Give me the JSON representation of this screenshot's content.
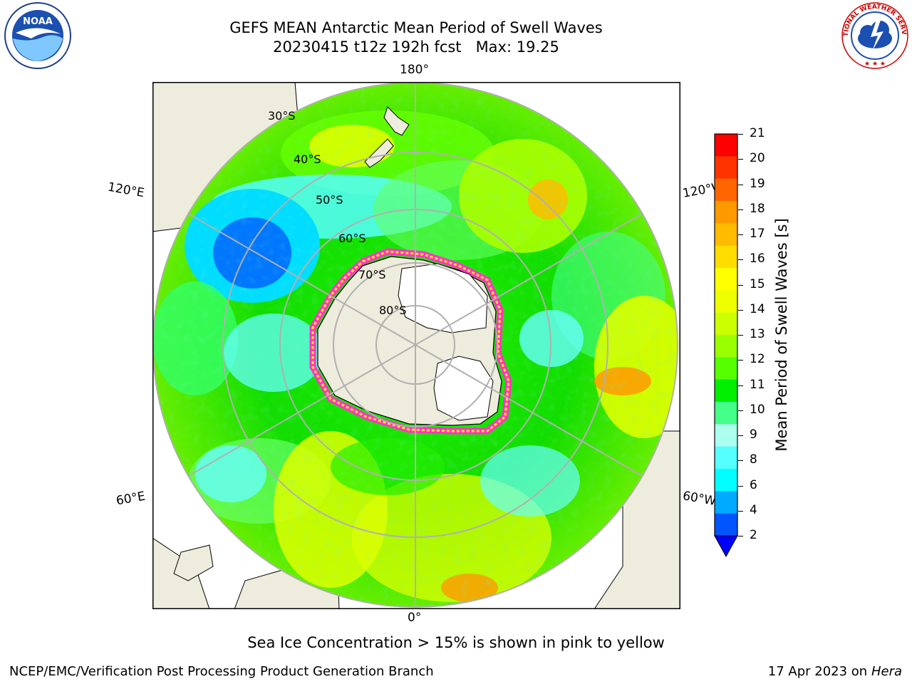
{
  "title": {
    "line1": "GEFS MEAN Antarctic Mean Period of Swell Waves",
    "line2": "20230415 t12z 192h fcst   Max: 19.25"
  },
  "logos": {
    "noaa": {
      "text": "NOAA",
      "icon": "noaa-logo-icon"
    },
    "nws": {
      "text": "NATIONAL WEATHER SERVICE",
      "icon": "nws-logo-icon"
    }
  },
  "map": {
    "projection": "south-polar-stereographic",
    "longitude_labels": {
      "top": "180°",
      "bottom": "0°",
      "upper_left": "120°E",
      "upper_right": "120°W",
      "lower_left": "60°E",
      "lower_right": "60°W"
    },
    "latitude_labels": [
      "30°S",
      "40°S",
      "50°S",
      "60°S",
      "70°S",
      "80°S"
    ],
    "colors": {
      "land": "#eeecdc",
      "antarctic_ice_shelf": "#ffffff",
      "graticule": "#b0b0b0",
      "sea_ice_edge": [
        "#ff33cc",
        "#ffee00"
      ]
    }
  },
  "colorbar": {
    "label": "Mean Period of Swell Waves [s]",
    "ticks": [
      "21",
      "20",
      "19",
      "18",
      "17",
      "16",
      "15",
      "14",
      "13",
      "12",
      "11",
      "10",
      "9",
      "8",
      "6",
      "4",
      "2"
    ],
    "colors": [
      "#ff0000",
      "#ff3300",
      "#ff6600",
      "#ff9900",
      "#ffbb00",
      "#ffdd00",
      "#ffff00",
      "#eeff00",
      "#ccff00",
      "#99ff00",
      "#55ff00",
      "#00ee00",
      "#44ff88",
      "#aaffee",
      "#55ffff",
      "#00ffff",
      "#00aaff",
      "#0055ff"
    ],
    "extend_color": "#0000ff"
  },
  "note": "Sea Ice Concentration > 15% is shown in pink to yellow",
  "footer": {
    "left": "NCEP/EMC/Verification Post Processing Product Generation Branch",
    "date": "17 Apr 2023",
    "on": "on",
    "machine": "Hera"
  }
}
